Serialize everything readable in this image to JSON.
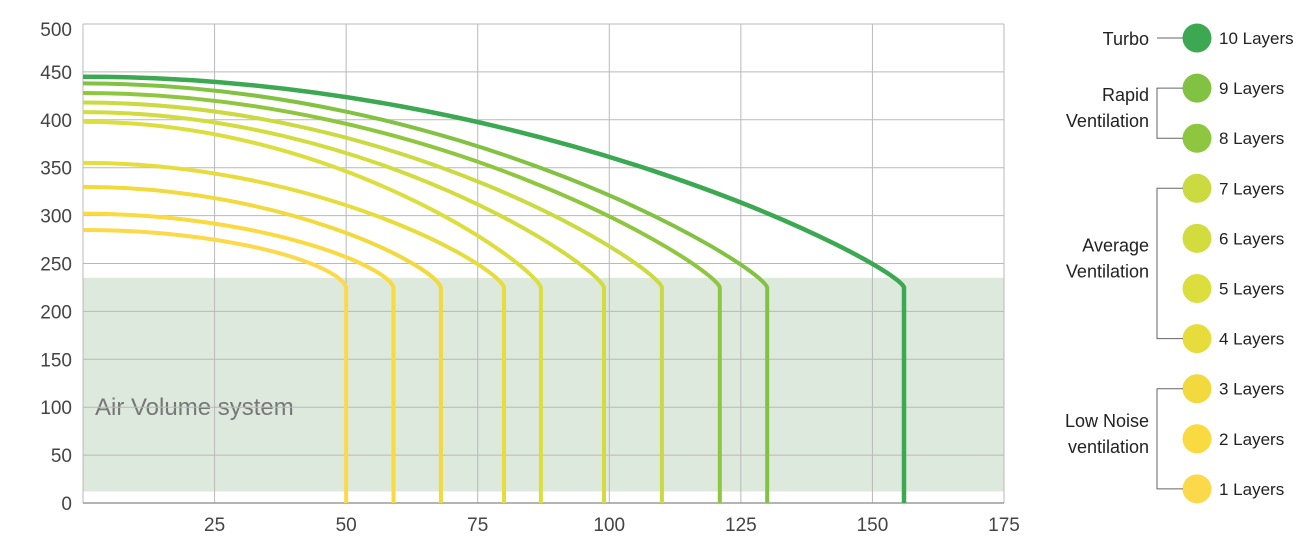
{
  "chart_data": {
    "type": "line",
    "title": "",
    "xlabel": "",
    "ylabel": "",
    "xlim": [
      0,
      175
    ],
    "ylim": [
      0,
      500
    ],
    "x_ticks": [
      25,
      50,
      75,
      100,
      125,
      150,
      175
    ],
    "y_ticks": [
      0,
      50,
      100,
      150,
      200,
      250,
      300,
      350,
      400,
      450,
      500
    ],
    "grid": true,
    "shaded_region": {
      "label": "Air Volume system",
      "y_range": [
        12,
        235
      ],
      "color": "#dde9dc"
    },
    "series": [
      {
        "name": "1 Layers",
        "color": "#fcd94a",
        "y0": 285,
        "x_max": 50,
        "y_knee": 225
      },
      {
        "name": "2 Layers",
        "color": "#f9da41",
        "y0": 302,
        "x_max": 59,
        "y_knee": 225
      },
      {
        "name": "3 Layers",
        "color": "#f2d93d",
        "y0": 330,
        "x_max": 68,
        "y_knee": 225
      },
      {
        "name": "4 Layers",
        "color": "#e6dd3d",
        "y0": 355,
        "x_max": 80,
        "y_knee": 225
      },
      {
        "name": "5 Layers",
        "color": "#dcde3d",
        "y0": 398,
        "x_max": 87,
        "y_knee": 225
      },
      {
        "name": "6 Layers",
        "color": "#d3dc3f",
        "y0": 408,
        "x_max": 99,
        "y_knee": 225
      },
      {
        "name": "7 Layers",
        "color": "#cbda40",
        "y0": 418,
        "x_max": 110,
        "y_knee": 225
      },
      {
        "name": "8 Layers",
        "color": "#8fc63f",
        "y0": 428,
        "x_max": 121,
        "y_knee": 225
      },
      {
        "name": "9 Layers",
        "color": "#82c242",
        "y0": 438,
        "x_max": 130,
        "y_knee": 225
      },
      {
        "name": "10 Layers",
        "color": "#3ca852",
        "y0": 445,
        "x_max": 156,
        "y_knee": 225
      }
    ],
    "legend_placement": "right",
    "legend_groups": [
      {
        "label_lines": [
          "Turbo"
        ],
        "members": [
          "10 Layers"
        ]
      },
      {
        "label_lines": [
          "Rapid",
          "Ventilation"
        ],
        "members": [
          "9 Layers",
          "8 Layers"
        ]
      },
      {
        "label_lines": [
          "Average",
          "Ventilation"
        ],
        "members": [
          "7 Layers",
          "6 Layers",
          "5 Layers",
          "4 Layers"
        ]
      },
      {
        "label_lines": [
          "Low Noise",
          "ventilation"
        ],
        "members": [
          "3 Layers",
          "2 Layers",
          "1 Layers"
        ]
      }
    ]
  }
}
